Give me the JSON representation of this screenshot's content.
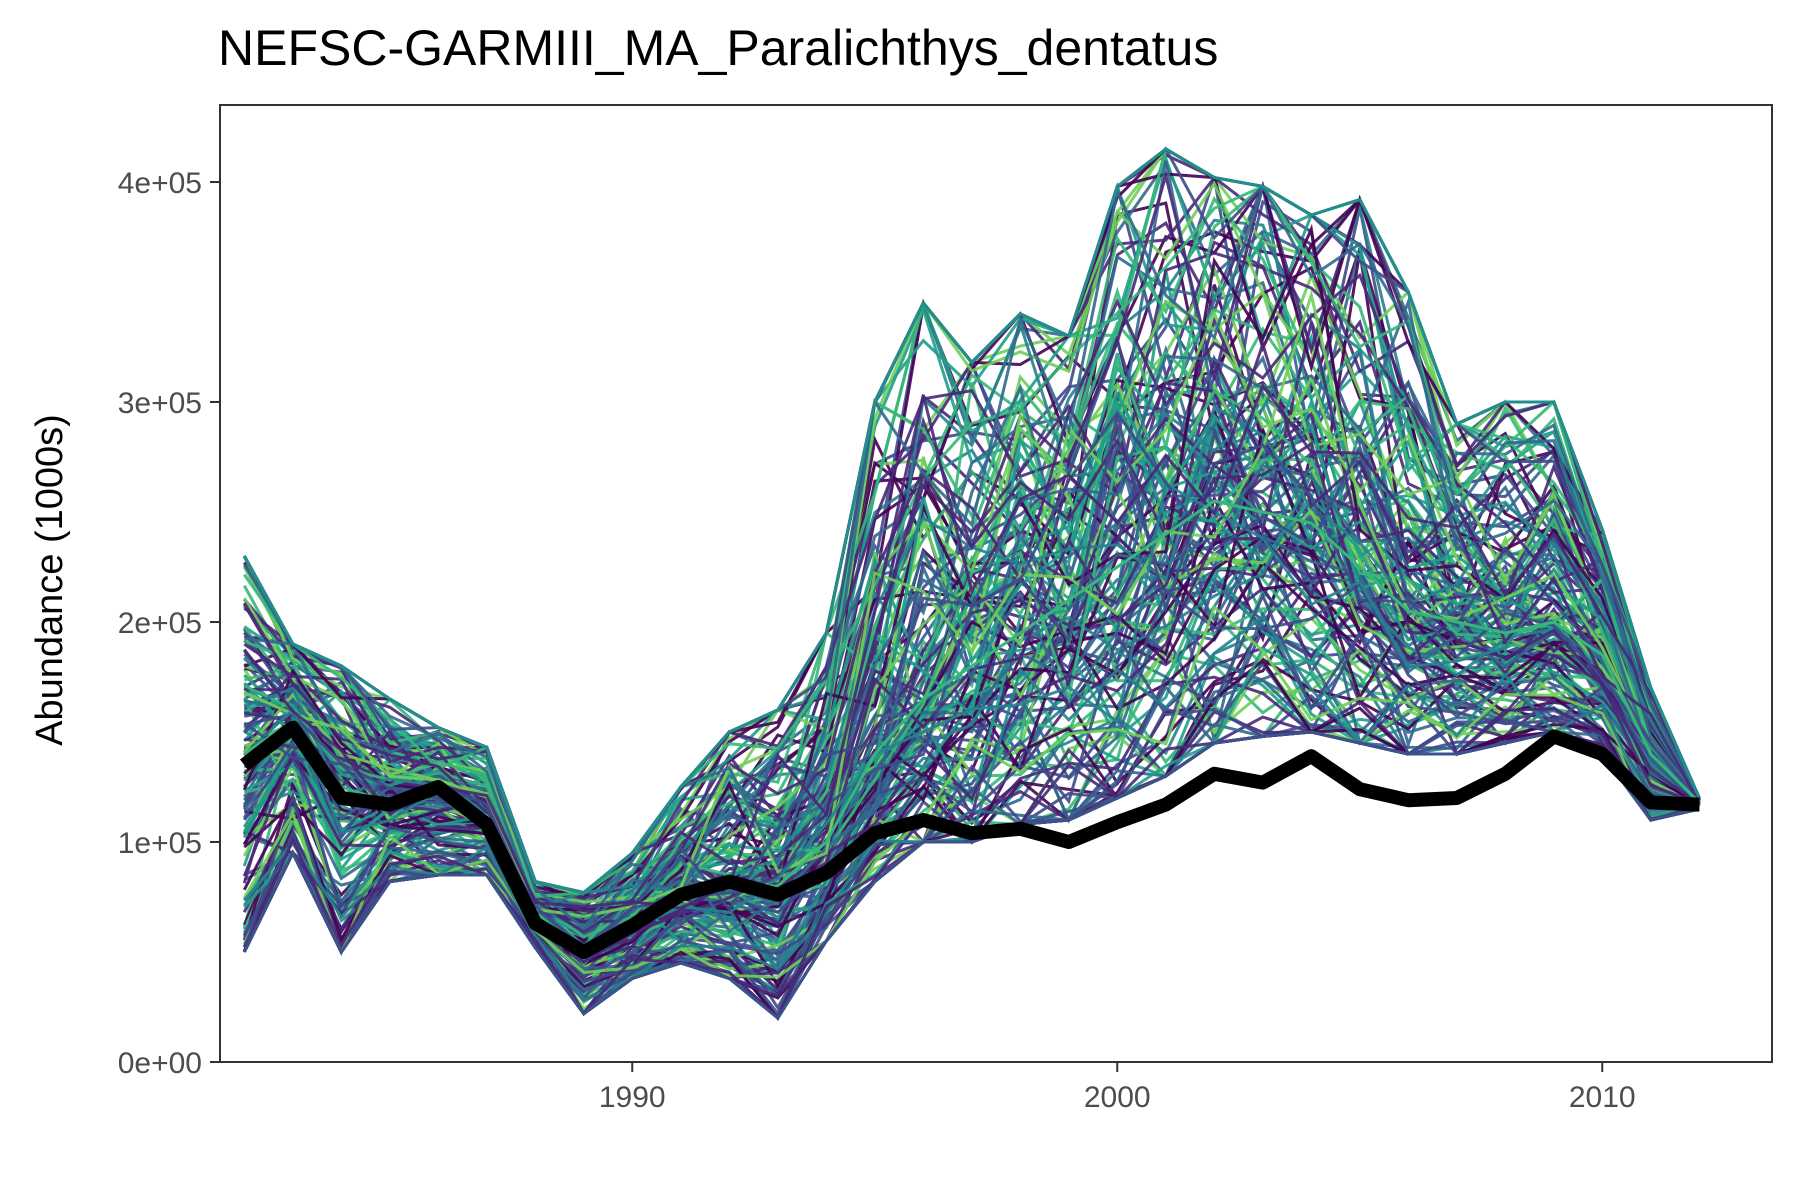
{
  "chart_data": {
    "type": "line",
    "title": "NEFSC-GARMIII_MA_Paralichthys_dentatus",
    "xlabel": "",
    "ylabel": "Abundance (1000s)",
    "xlim": [
      1981.5,
      2013.5
    ],
    "ylim": [
      0,
      435000
    ],
    "x_ticks": [
      1990,
      2000,
      2010
    ],
    "x_tick_labels": [
      "1990",
      "2000",
      "2010"
    ],
    "y_ticks": [
      0,
      100000,
      200000,
      300000,
      400000
    ],
    "y_tick_labels": [
      "0e+00",
      "1e+05",
      "2e+05",
      "3e+05",
      "4e+05"
    ],
    "grid": false,
    "legend": "none",
    "x": [
      1982,
      1983,
      1984,
      1985,
      1986,
      1987,
      1988,
      1989,
      1990,
      1991,
      1992,
      1993,
      1994,
      1995,
      1996,
      1997,
      1998,
      1999,
      2000,
      2001,
      2002,
      2003,
      2004,
      2005,
      2006,
      2007,
      2008,
      2009,
      2010,
      2011,
      2012
    ],
    "series": [
      {
        "role": "reference",
        "color": "#000000",
        "values": [
          135000,
          152000,
          120000,
          117000,
          125000,
          108000,
          63000,
          50000,
          62000,
          76000,
          82000,
          76000,
          86000,
          104000,
          110000,
          104000,
          106000,
          100000,
          109000,
          117000,
          131000,
          127000,
          139000,
          124000,
          119000,
          120000,
          131000,
          148000,
          140000,
          118000,
          117000
        ]
      },
      {
        "role": "ensemble-envelope-low",
        "color": "#3b528b",
        "values": [
          50000,
          95000,
          50000,
          82000,
          85000,
          85000,
          52000,
          22000,
          38000,
          45000,
          38000,
          20000,
          55000,
          82000,
          100000,
          100000,
          108000,
          110000,
          120000,
          130000,
          145000,
          148000,
          150000,
          145000,
          140000,
          140000,
          145000,
          150000,
          140000,
          110000,
          115000
        ]
      },
      {
        "role": "ensemble-median",
        "color": "#35b779",
        "values": [
          140000,
          155000,
          125000,
          118000,
          122000,
          112000,
          68000,
          50000,
          63000,
          74000,
          80000,
          80000,
          100000,
          140000,
          165000,
          180000,
          195000,
          210000,
          225000,
          240000,
          255000,
          250000,
          245000,
          225000,
          205000,
          200000,
          195000,
          200000,
          185000,
          140000,
          118000
        ]
      },
      {
        "role": "ensemble-envelope-high",
        "color": "#21908c",
        "values": [
          230000,
          190000,
          180000,
          165000,
          152000,
          143000,
          82000,
          77000,
          95000,
          125000,
          150000,
          160000,
          195000,
          300000,
          345000,
          318000,
          340000,
          330000,
          398000,
          415000,
          402000,
          398000,
          385000,
          392000,
          350000,
          290000,
          300000,
          300000,
          242000,
          170000,
          120000
        ]
      }
    ],
    "ensemble_colors": [
      "#440154",
      "#482878",
      "#3e4a89",
      "#31688e",
      "#26828e",
      "#1f9e89",
      "#35b779",
      "#6ece58"
    ]
  }
}
